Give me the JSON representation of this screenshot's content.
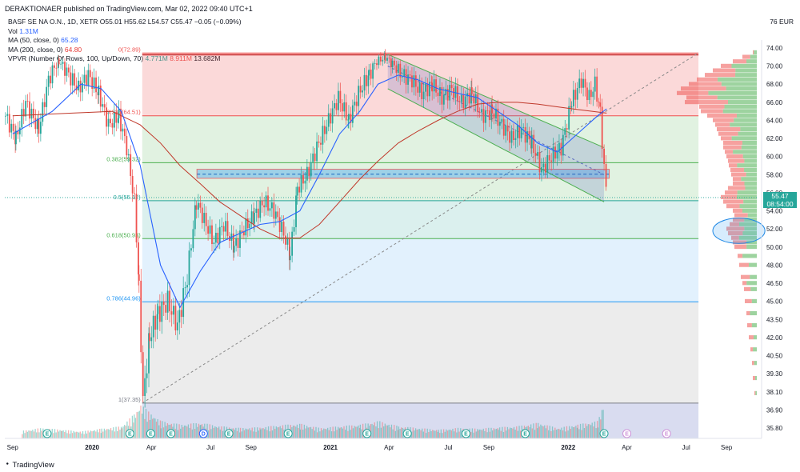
{
  "header": {
    "publisher": "DERAKTIONAER published on TradingView.com, Mar 02, 2022 09:40 UTC+1"
  },
  "legend": {
    "symbol": "BASF SE NA O.N., 1D, XETR",
    "ohlc": "O55.01  H55.62  L54.57  C55.47  −0.05 (−0.09%)",
    "vol_label": "Vol",
    "vol_value": "1.31M",
    "ma50_label": "MA (50, close, 0)",
    "ma50_value": "65.28",
    "ma200_label": "MA (200, close, 0)",
    "ma200_value": "64.80",
    "vpvr_label": "VPVR (Number Of Rows, 100, Up/Down, 70)",
    "vpvr_up": "4.771M",
    "vpvr_down": "8.911M",
    "vpvr_total": "13.682M"
  },
  "axis": {
    "currency": "EUR",
    "top_marker": "76"
  },
  "price_tag": {
    "price": "55.47",
    "countdown": "08:54:00"
  },
  "footer": {
    "brand": "TradingView"
  },
  "colors": {
    "up": "#26a69a",
    "down": "#ef5350",
    "ma50": "#2962ff",
    "ma200": "#e57373",
    "fib_line": "#4caf50",
    "channel": "#5c6bc0"
  },
  "chart_data": {
    "type": "candlestick",
    "symbol": "BASF SE NA O.N.",
    "interval": "1D",
    "last": {
      "open": 55.01,
      "high": 55.62,
      "low": 54.57,
      "close": 55.47,
      "change": -0.05,
      "change_pct": -0.09
    },
    "y_ticks": [
      74.0,
      70.0,
      68.0,
      66.0,
      64.0,
      62.0,
      60.0,
      58.0,
      56.0,
      54.0,
      52.0,
      50.0,
      48.0,
      46.5,
      45.0,
      43.5,
      42.0,
      40.5,
      39.3,
      38.1,
      36.9,
      35.8
    ],
    "x_ticks": [
      {
        "label": "Sep",
        "d": "2019-09-01"
      },
      {
        "label": "2020",
        "d": "2020-01-01"
      },
      {
        "label": "Apr",
        "d": "2020-04-01"
      },
      {
        "label": "Jul",
        "d": "2020-07-01"
      },
      {
        "label": "Sep",
        "d": "2020-09-01"
      },
      {
        "label": "2021",
        "d": "2021-01-01"
      },
      {
        "label": "Apr",
        "d": "2021-04-01"
      },
      {
        "label": "Jul",
        "d": "2021-07-01"
      },
      {
        "label": "Sep",
        "d": "2021-09-01"
      },
      {
        "label": "2022",
        "d": "2022-01-01"
      },
      {
        "label": "Apr",
        "d": "2022-04-01"
      },
      {
        "label": "Jul",
        "d": "2022-07-01"
      },
      {
        "label": "Sep",
        "d": "2022-09-01"
      }
    ],
    "fib_levels": [
      {
        "label": "0(72.89)",
        "ratio": 0,
        "price": 72.89
      },
      {
        "label": "0.236(64.51)",
        "ratio": 0.236,
        "price": 64.51
      },
      {
        "label": "0.382(59.32)",
        "ratio": 0.382,
        "price": 59.32
      },
      {
        "label": "0.5(55.12)",
        "ratio": 0.5,
        "price": 55.12
      },
      {
        "label": "0.618(50.93)",
        "ratio": 0.618,
        "price": 50.93
      },
      {
        "label": "0.786(44.96)",
        "ratio": 0.786,
        "price": 44.96
      },
      {
        "label": "1(37.35)",
        "ratio": 1,
        "price": 37.35
      }
    ],
    "price_path": [
      [
        "2019-08-20",
        64.5
      ],
      [
        "2019-09-05",
        62.0
      ],
      [
        "2019-09-20",
        66.0
      ],
      [
        "2019-10-10",
        63.0
      ],
      [
        "2019-10-25",
        68.5
      ],
      [
        "2019-11-10",
        71.0
      ],
      [
        "2019-11-25",
        69.0
      ],
      [
        "2019-12-10",
        67.5
      ],
      [
        "2019-12-25",
        69.0
      ],
      [
        "2020-01-10",
        67.0
      ],
      [
        "2020-01-25",
        63.5
      ],
      [
        "2020-02-10",
        64.5
      ],
      [
        "2020-02-22",
        61.0
      ],
      [
        "2020-03-05",
        55.0
      ],
      [
        "2020-03-12",
        46.0
      ],
      [
        "2020-03-18",
        37.35
      ],
      [
        "2020-03-28",
        42.0
      ],
      [
        "2020-04-10",
        44.0
      ],
      [
        "2020-04-25",
        45.0
      ],
      [
        "2020-05-10",
        43.0
      ],
      [
        "2020-05-25",
        47.0
      ],
      [
        "2020-06-08",
        55.0
      ],
      [
        "2020-06-20",
        53.0
      ],
      [
        "2020-07-05",
        50.5
      ],
      [
        "2020-07-20",
        52.5
      ],
      [
        "2020-08-05",
        50.0
      ],
      [
        "2020-08-20",
        52.0
      ],
      [
        "2020-09-05",
        53.5
      ],
      [
        "2020-09-20",
        55.0
      ],
      [
        "2020-10-05",
        54.0
      ],
      [
        "2020-10-20",
        51.5
      ],
      [
        "2020-10-30",
        49.0
      ],
      [
        "2020-11-10",
        56.5
      ],
      [
        "2020-11-25",
        58.0
      ],
      [
        "2020-12-10",
        61.0
      ],
      [
        "2020-12-28",
        64.0
      ],
      [
        "2021-01-12",
        66.5
      ],
      [
        "2021-01-28",
        64.0
      ],
      [
        "2021-02-12",
        67.0
      ],
      [
        "2021-02-28",
        69.0
      ],
      [
        "2021-03-12",
        71.0
      ],
      [
        "2021-03-25",
        72.0
      ],
      [
        "2021-04-05",
        70.5
      ],
      [
        "2021-04-20",
        69.0
      ],
      [
        "2021-05-05",
        68.5
      ],
      [
        "2021-05-20",
        67.0
      ],
      [
        "2021-06-05",
        68.0
      ],
      [
        "2021-06-20",
        66.5
      ],
      [
        "2021-07-05",
        67.5
      ],
      [
        "2021-07-20",
        66.0
      ],
      [
        "2021-08-05",
        67.0
      ],
      [
        "2021-08-20",
        64.5
      ],
      [
        "2021-09-05",
        65.0
      ],
      [
        "2021-09-20",
        63.5
      ],
      [
        "2021-10-05",
        62.0
      ],
      [
        "2021-10-20",
        63.0
      ],
      [
        "2021-11-05",
        61.5
      ],
      [
        "2021-11-20",
        58.5
      ],
      [
        "2021-12-05",
        60.0
      ],
      [
        "2021-12-20",
        61.0
      ],
      [
        "2022-01-05",
        66.0
      ],
      [
        "2022-01-20",
        68.5
      ],
      [
        "2022-02-01",
        66.5
      ],
      [
        "2022-02-10",
        68.0
      ],
      [
        "2022-02-18",
        65.0
      ],
      [
        "2022-02-24",
        58.5
      ],
      [
        "2022-03-01",
        55.47
      ]
    ],
    "ma50": [
      [
        "2019-09-01",
        62.5
      ],
      [
        "2019-11-01",
        65.0
      ],
      [
        "2019-12-15",
        68.0
      ],
      [
        "2020-01-15",
        67.5
      ],
      [
        "2020-02-15",
        65.0
      ],
      [
        "2020-03-15",
        59.0
      ],
      [
        "2020-04-15",
        48.0
      ],
      [
        "2020-05-15",
        44.5
      ],
      [
        "2020-06-15",
        47.5
      ],
      [
        "2020-07-15",
        50.5
      ],
      [
        "2020-08-15",
        51.5
      ],
      [
        "2020-09-15",
        52.5
      ],
      [
        "2020-10-15",
        52.8
      ],
      [
        "2020-11-15",
        54.0
      ],
      [
        "2020-12-15",
        58.0
      ],
      [
        "2021-01-15",
        62.5
      ],
      [
        "2021-02-15",
        65.0
      ],
      [
        "2021-03-15",
        68.0
      ],
      [
        "2021-04-15",
        69.0
      ],
      [
        "2021-05-15",
        68.5
      ],
      [
        "2021-06-15",
        67.5
      ],
      [
        "2021-07-15",
        67.0
      ],
      [
        "2021-08-15",
        66.5
      ],
      [
        "2021-09-15",
        65.0
      ],
      [
        "2021-10-15",
        63.5
      ],
      [
        "2021-11-15",
        61.5
      ],
      [
        "2021-12-15",
        60.5
      ],
      [
        "2022-01-15",
        62.5
      ],
      [
        "2022-02-15",
        64.5
      ],
      [
        "2022-03-01",
        65.28
      ]
    ],
    "ma200": [
      [
        "2019-09-01",
        64.5
      ],
      [
        "2019-12-01",
        64.8
      ],
      [
        "2020-02-01",
        65.0
      ],
      [
        "2020-03-15",
        63.5
      ],
      [
        "2020-04-15",
        61.5
      ],
      [
        "2020-05-15",
        59.0
      ],
      [
        "2020-06-15",
        57.0
      ],
      [
        "2020-07-15",
        55.0
      ],
      [
        "2020-08-15",
        53.5
      ],
      [
        "2020-09-15",
        52.0
      ],
      [
        "2020-10-15",
        51.0
      ],
      [
        "2020-11-15",
        51.0
      ],
      [
        "2020-12-15",
        52.5
      ],
      [
        "2021-01-15",
        55.0
      ],
      [
        "2021-02-15",
        57.5
      ],
      [
        "2021-03-15",
        59.5
      ],
      [
        "2021-04-15",
        61.5
      ],
      [
        "2021-05-15",
        62.8
      ],
      [
        "2021-06-15",
        64.0
      ],
      [
        "2021-07-15",
        65.0
      ],
      [
        "2021-08-15",
        65.8
      ],
      [
        "2021-09-15",
        66.0
      ],
      [
        "2021-10-15",
        66.0
      ],
      [
        "2021-11-15",
        65.8
      ],
      [
        "2021-12-15",
        65.5
      ],
      [
        "2022-01-15",
        65.2
      ],
      [
        "2022-03-01",
        64.8
      ]
    ],
    "channel": {
      "upper": [
        [
          "2021-03-30",
          72.6
        ],
        [
          "2022-02-25",
          61.0
        ]
      ],
      "lower": [
        [
          "2021-03-30",
          67.5
        ],
        [
          "2022-02-25",
          55.0
        ]
      ],
      "mid_dashed": [
        [
          "2021-03-30",
          70.0
        ],
        [
          "2022-02-25",
          58.0
        ]
      ]
    },
    "support_zone": {
      "from": "2020-06-10",
      "to": "2022-03-05",
      "low": 57.6,
      "high": 58.6,
      "mid": 58.05
    },
    "horizontal_line": {
      "price": 72.5,
      "from": "2020-03-18",
      "to": "2022-07-20"
    },
    "trend_line": {
      "from": [
        "2020-03-18",
        37.35
      ],
      "to": [
        "2022-07-20",
        72.9
      ]
    },
    "price_line": 55.47,
    "volume_bars": [
      [
        "2019-09-15",
        0.22
      ],
      [
        "2019-10-15",
        0.3
      ],
      [
        "2019-11-15",
        0.25
      ],
      [
        "2019-12-15",
        0.2
      ],
      [
        "2020-01-15",
        0.28
      ],
      [
        "2020-02-15",
        0.35
      ],
      [
        "2020-03-05",
        0.7
      ],
      [
        "2020-03-15",
        1.0
      ],
      [
        "2020-03-25",
        0.8
      ],
      [
        "2020-04-15",
        0.5
      ],
      [
        "2020-05-15",
        0.4
      ],
      [
        "2020-06-15",
        0.45
      ],
      [
        "2020-07-15",
        0.35
      ],
      [
        "2020-08-15",
        0.3
      ],
      [
        "2020-09-15",
        0.32
      ],
      [
        "2020-10-15",
        0.38
      ],
      [
        "2020-11-15",
        0.42
      ],
      [
        "2020-12-15",
        0.3
      ],
      [
        "2021-01-15",
        0.35
      ],
      [
        "2021-02-15",
        0.4
      ],
      [
        "2021-03-15",
        0.5
      ],
      [
        "2021-04-15",
        0.35
      ],
      [
        "2021-05-15",
        0.3
      ],
      [
        "2021-06-15",
        0.25
      ],
      [
        "2021-07-15",
        0.3
      ],
      [
        "2021-08-15",
        0.28
      ],
      [
        "2021-09-15",
        0.32
      ],
      [
        "2021-10-15",
        0.35
      ],
      [
        "2021-11-15",
        0.45
      ],
      [
        "2021-12-15",
        0.3
      ],
      [
        "2022-01-15",
        0.4
      ],
      [
        "2022-02-15",
        0.5
      ],
      [
        "2022-02-25",
        1.1
      ]
    ],
    "volume_profile": [
      [
        73.0,
        0.05
      ],
      [
        72.0,
        0.18
      ],
      [
        71.0,
        0.3
      ],
      [
        70.0,
        0.45
      ],
      [
        69.5,
        0.55
      ],
      [
        69.0,
        0.65
      ],
      [
        68.5,
        0.75
      ],
      [
        68.0,
        0.85
      ],
      [
        67.5,
        0.95
      ],
      [
        67.0,
        1.0
      ],
      [
        66.5,
        0.88
      ],
      [
        66.0,
        0.9
      ],
      [
        65.5,
        0.72
      ],
      [
        65.0,
        0.7
      ],
      [
        64.5,
        0.62
      ],
      [
        64.0,
        0.55
      ],
      [
        63.5,
        0.52
      ],
      [
        63.0,
        0.5
      ],
      [
        62.5,
        0.48
      ],
      [
        62.0,
        0.45
      ],
      [
        61.5,
        0.42
      ],
      [
        61.0,
        0.42
      ],
      [
        60.5,
        0.4
      ],
      [
        60.0,
        0.38
      ],
      [
        59.5,
        0.36
      ],
      [
        59.0,
        0.35
      ],
      [
        58.5,
        0.33
      ],
      [
        58.0,
        0.32
      ],
      [
        57.5,
        0.3
      ],
      [
        57.0,
        0.3
      ],
      [
        56.5,
        0.36
      ],
      [
        56.0,
        0.4
      ],
      [
        55.5,
        0.45
      ],
      [
        55.0,
        0.42
      ],
      [
        54.5,
        0.38
      ],
      [
        54.0,
        0.3
      ],
      [
        53.5,
        0.28
      ],
      [
        53.0,
        0.3
      ],
      [
        52.5,
        0.34
      ],
      [
        52.0,
        0.38
      ],
      [
        51.5,
        0.36
      ],
      [
        51.0,
        0.32
      ],
      [
        50.5,
        0.3
      ],
      [
        50.0,
        0.28
      ],
      [
        49.0,
        0.24
      ],
      [
        48.0,
        0.22
      ],
      [
        47.0,
        0.2
      ],
      [
        46.5,
        0.18
      ],
      [
        46.0,
        0.16
      ],
      [
        45.0,
        0.15
      ],
      [
        44.0,
        0.13
      ],
      [
        43.0,
        0.12
      ],
      [
        42.0,
        0.1
      ],
      [
        41.0,
        0.08
      ],
      [
        40.0,
        0.06
      ],
      [
        39.0,
        0.05
      ],
      [
        38.0,
        0.03
      ]
    ],
    "event_markers": [
      {
        "d": "2019-10-24",
        "t": "E"
      },
      {
        "d": "2020-02-28",
        "t": "E"
      },
      {
        "d": "2020-03-31",
        "t": "E"
      },
      {
        "d": "2020-05-01",
        "t": "E"
      },
      {
        "d": "2020-06-20",
        "t": "D"
      },
      {
        "d": "2020-07-29",
        "t": "E"
      },
      {
        "d": "2020-10-28",
        "t": "E"
      },
      {
        "d": "2021-02-26",
        "t": "E"
      },
      {
        "d": "2021-04-29",
        "t": "E"
      },
      {
        "d": "2021-07-28",
        "t": "E"
      },
      {
        "d": "2021-10-27",
        "t": "E"
      },
      {
        "d": "2022-02-25",
        "t": "E"
      }
    ],
    "future_markers": [
      {
        "d": "2022-04-01",
        "t": "E"
      },
      {
        "d": "2022-06-01",
        "t": "E"
      }
    ],
    "annotation_ellipse": {
      "center": [
        "2022-09-20",
        51.8
      ],
      "rx_days": 40,
      "ry_price": 1.4
    }
  }
}
